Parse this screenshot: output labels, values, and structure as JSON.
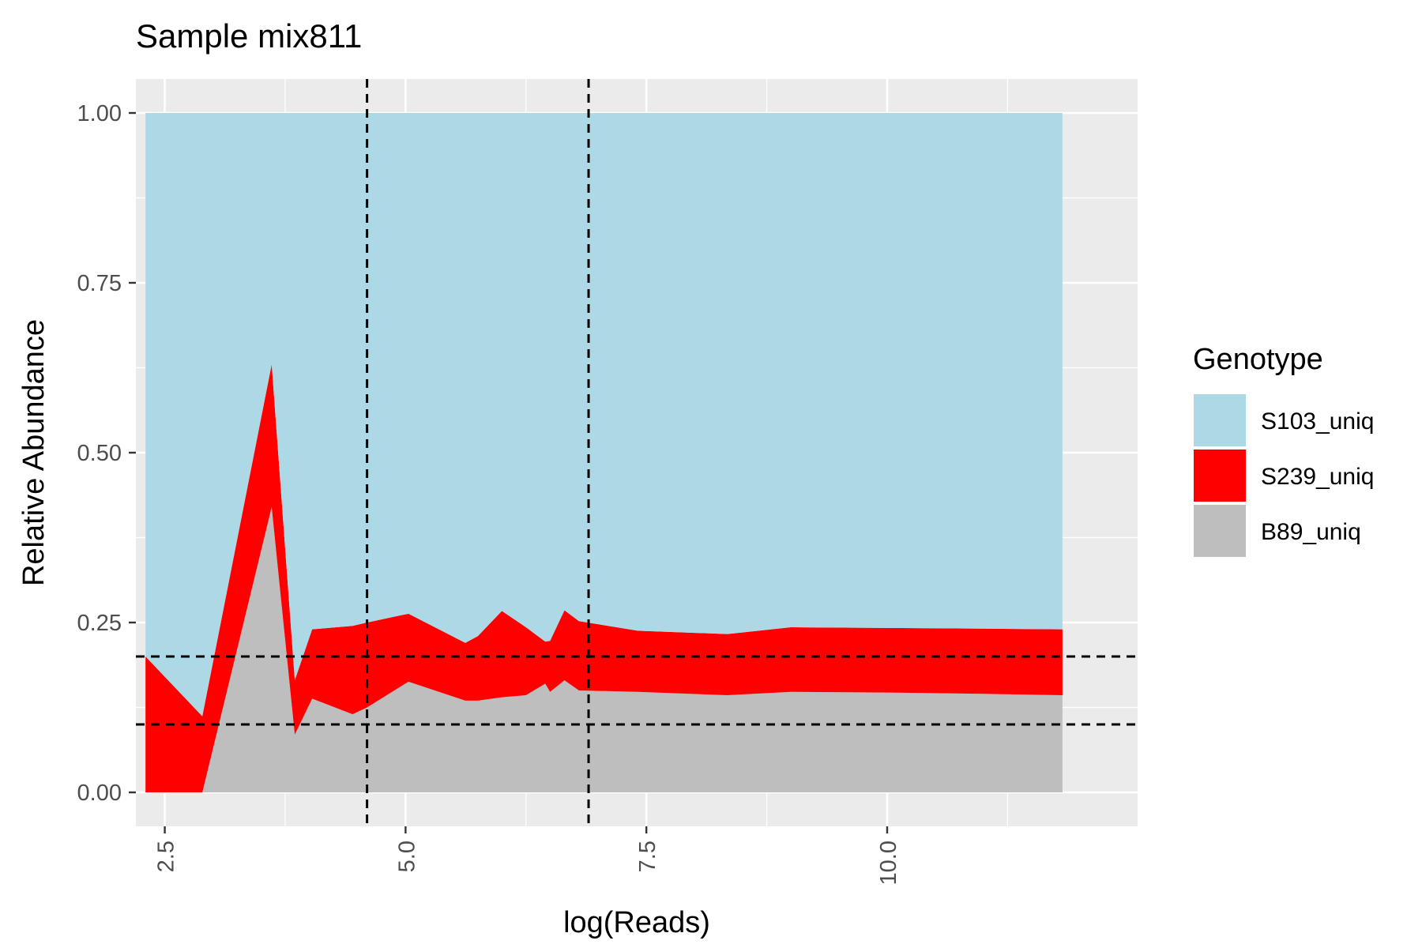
{
  "chart_data": {
    "type": "area",
    "stacked": true,
    "title": "Sample mix811",
    "xlabel": "log(Reads)",
    "ylabel": "Relative Abundance",
    "xlim": [
      2.2,
      12.6
    ],
    "ylim": [
      -0.05,
      1.05
    ],
    "x_ticks": [
      {
        "value": 2.5,
        "label": "2.5"
      },
      {
        "value": 5.0,
        "label": "5.0"
      },
      {
        "value": 7.5,
        "label": "7.5"
      },
      {
        "value": 10.0,
        "label": "10.0"
      }
    ],
    "y_ticks": [
      {
        "value": 0.0,
        "label": "0.00"
      },
      {
        "value": 0.25,
        "label": "0.25"
      },
      {
        "value": 0.5,
        "label": "0.50"
      },
      {
        "value": 0.75,
        "label": "0.75"
      },
      {
        "value": 1.0,
        "label": "1.00"
      }
    ],
    "x": [
      2.3,
      2.89,
      3.61,
      3.85,
      4.03,
      4.45,
      4.6,
      5.03,
      5.62,
      5.75,
      6.0,
      6.25,
      6.45,
      6.5,
      6.65,
      6.8,
      7.41,
      8.34,
      9.0,
      10.0,
      11.0,
      11.82
    ],
    "series": [
      {
        "name": "B89_uniq",
        "color": "#BEBEBE",
        "values": [
          0.0,
          0.0,
          0.42,
          0.085,
          0.138,
          0.115,
          0.125,
          0.163,
          0.135,
          0.135,
          0.14,
          0.143,
          0.16,
          0.148,
          0.165,
          0.15,
          0.148,
          0.143,
          0.148,
          0.147,
          0.145,
          0.143
        ]
      },
      {
        "name": "S239_uniq",
        "color": "#FF0000",
        "values": [
          0.2,
          0.112,
          0.21,
          0.08,
          0.102,
          0.13,
          0.125,
          0.1,
          0.085,
          0.095,
          0.127,
          0.1,
          0.062,
          0.075,
          0.103,
          0.102,
          0.09,
          0.09,
          0.095,
          0.095,
          0.096,
          0.097
        ]
      },
      {
        "name": "S103_uniq",
        "color": "#ADD8E6",
        "values": [
          0.8,
          0.888,
          0.37,
          0.835,
          0.76,
          0.755,
          0.75,
          0.737,
          0.78,
          0.77,
          0.733,
          0.757,
          0.778,
          0.777,
          0.732,
          0.748,
          0.762,
          0.767,
          0.757,
          0.758,
          0.759,
          0.76
        ]
      }
    ],
    "vlines": [
      4.6,
      6.9
    ],
    "hlines": [
      0.1,
      0.2
    ],
    "grid": true,
    "legend": {
      "title": "Genotype",
      "placement": "right",
      "items": [
        {
          "label": "S103_uniq",
          "color": "#ADD8E6"
        },
        {
          "label": "S239_uniq",
          "color": "#FF0000"
        },
        {
          "label": "B89_uniq",
          "color": "#BEBEBE"
        }
      ]
    }
  }
}
